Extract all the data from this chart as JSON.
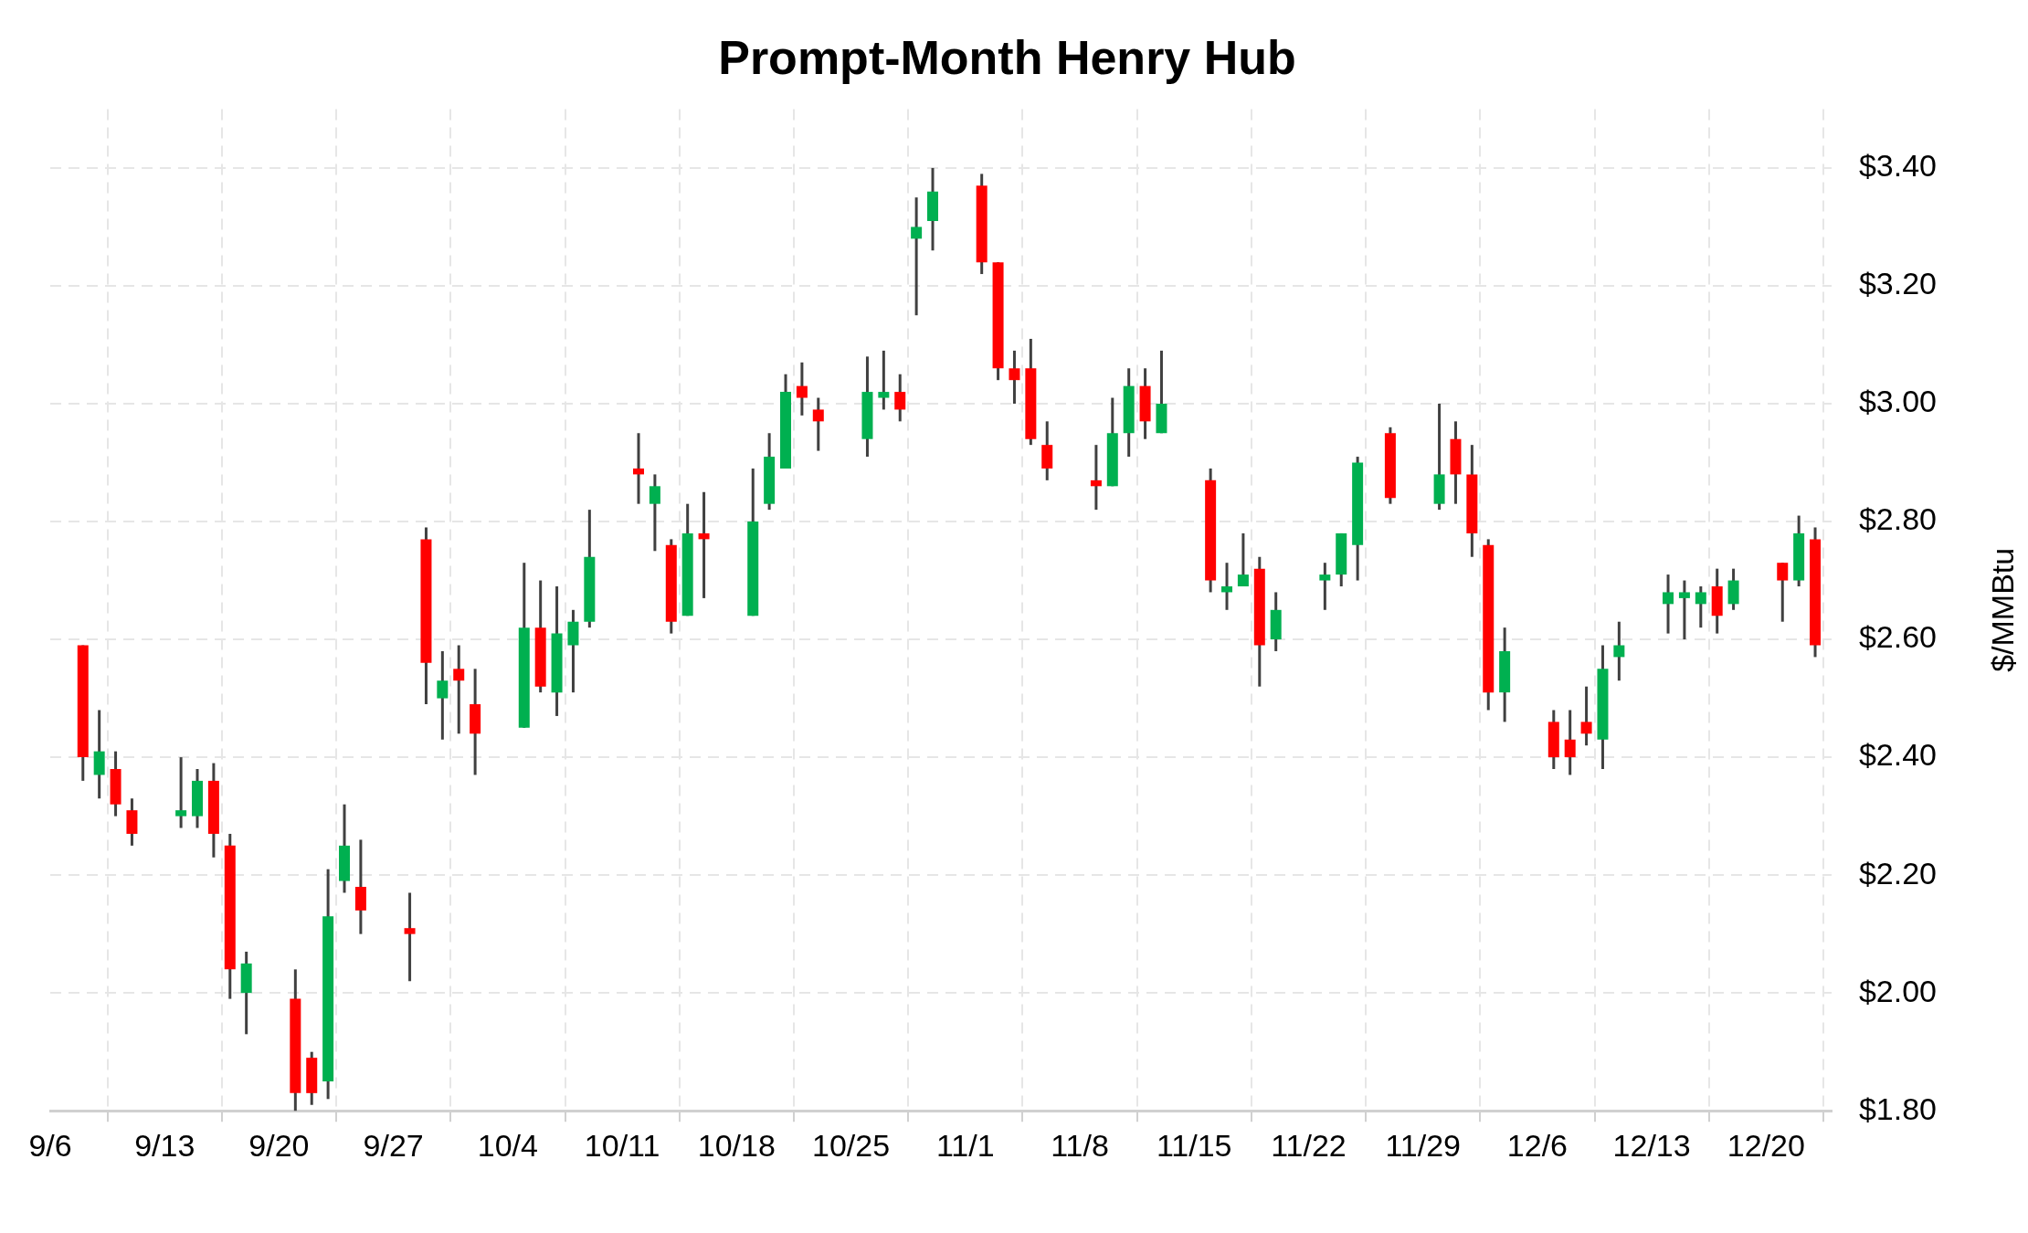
{
  "chart_data": {
    "type": "candlestick",
    "title": "Prompt-Month Henry Hub",
    "ylabel": "$/MMBtu",
    "x": [
      "--09-08",
      "--09-09",
      "--09-10",
      "--09-11",
      "--09-14",
      "--09-15",
      "--09-16",
      "--09-17",
      "--09-18",
      "--09-21",
      "--09-22",
      "--09-23",
      "--09-24",
      "--09-25",
      "--09-28",
      "--09-29",
      "--09-30",
      "--10-01",
      "--10-02",
      "--10-05",
      "--10-06",
      "--10-07",
      "--10-08",
      "--10-09",
      "--10-12",
      "--10-13",
      "--10-14",
      "--10-15",
      "--10-16",
      "--10-19",
      "--10-20",
      "--10-21",
      "--10-22",
      "--10-23",
      "--10-26",
      "--10-27",
      "--10-28",
      "--10-29",
      "--10-30",
      "--11-02",
      "--11-03",
      "--11-04",
      "--11-05",
      "--11-06",
      "--11-09",
      "--11-10",
      "--11-11",
      "--11-12",
      "--11-13",
      "--11-16",
      "--11-17",
      "--11-18",
      "--11-19",
      "--11-20",
      "--11-23",
      "--11-24",
      "--11-25",
      "--11-27",
      "--11-30",
      "--12-01",
      "--12-02",
      "--12-03",
      "--12-04",
      "--12-07",
      "--12-08",
      "--12-09",
      "--12-10",
      "--12-11",
      "--12-14",
      "--12-15",
      "--12-16",
      "--12-17",
      "--12-18",
      "--12-21",
      "--12-22",
      "--12-23"
    ],
    "ohlc": [
      [
        2.59,
        2.59,
        2.36,
        2.4
      ],
      [
        2.37,
        2.48,
        2.33,
        2.41
      ],
      [
        2.38,
        2.41,
        2.3,
        2.32
      ],
      [
        2.31,
        2.33,
        2.25,
        2.27
      ],
      [
        2.3,
        2.4,
        2.28,
        2.31
      ],
      [
        2.3,
        2.38,
        2.28,
        2.36
      ],
      [
        2.36,
        2.39,
        2.23,
        2.27
      ],
      [
        2.25,
        2.27,
        1.99,
        2.04
      ],
      [
        2.0,
        2.07,
        1.93,
        2.05
      ],
      [
        1.99,
        2.04,
        1.8,
        1.83
      ],
      [
        1.89,
        1.9,
        1.81,
        1.83
      ],
      [
        1.85,
        2.21,
        1.82,
        2.13
      ],
      [
        2.19,
        2.32,
        2.17,
        2.25
      ],
      [
        2.18,
        2.26,
        2.1,
        2.14
      ],
      [
        2.11,
        2.17,
        2.02,
        2.1
      ],
      [
        2.77,
        2.79,
        2.49,
        2.56
      ],
      [
        2.5,
        2.58,
        2.43,
        2.53
      ],
      [
        2.55,
        2.59,
        2.44,
        2.53
      ],
      [
        2.49,
        2.55,
        2.37,
        2.44
      ],
      [
        2.45,
        2.73,
        2.45,
        2.62
      ],
      [
        2.62,
        2.7,
        2.51,
        2.52
      ],
      [
        2.51,
        2.69,
        2.47,
        2.61
      ],
      [
        2.59,
        2.65,
        2.51,
        2.63
      ],
      [
        2.63,
        2.82,
        2.62,
        2.74
      ],
      [
        2.89,
        2.95,
        2.83,
        2.88
      ],
      [
        2.83,
        2.88,
        2.75,
        2.86
      ],
      [
        2.76,
        2.77,
        2.61,
        2.63
      ],
      [
        2.64,
        2.83,
        2.64,
        2.78
      ],
      [
        2.78,
        2.85,
        2.67,
        2.77
      ],
      [
        2.64,
        2.89,
        2.64,
        2.8
      ],
      [
        2.83,
        2.95,
        2.82,
        2.91
      ],
      [
        2.89,
        3.05,
        2.89,
        3.02
      ],
      [
        3.03,
        3.07,
        2.98,
        3.01
      ],
      [
        2.99,
        3.01,
        2.92,
        2.97
      ],
      [
        2.94,
        3.08,
        2.91,
        3.02
      ],
      [
        3.01,
        3.09,
        2.99,
        3.02
      ],
      [
        3.02,
        3.05,
        2.97,
        2.99
      ],
      [
        3.28,
        3.35,
        3.15,
        3.3
      ],
      [
        3.31,
        3.4,
        3.26,
        3.36
      ],
      [
        3.37,
        3.39,
        3.22,
        3.24
      ],
      [
        3.24,
        3.24,
        3.04,
        3.06
      ],
      [
        3.06,
        3.09,
        3.0,
        3.04
      ],
      [
        3.06,
        3.11,
        2.93,
        2.94
      ],
      [
        2.93,
        2.97,
        2.87,
        2.89
      ],
      [
        2.87,
        2.93,
        2.82,
        2.86
      ],
      [
        2.86,
        3.01,
        2.86,
        2.95
      ],
      [
        2.95,
        3.06,
        2.91,
        3.03
      ],
      [
        3.03,
        3.06,
        2.94,
        2.97
      ],
      [
        2.95,
        3.09,
        2.95,
        3.0
      ],
      [
        2.87,
        2.89,
        2.68,
        2.7
      ],
      [
        2.68,
        2.73,
        2.65,
        2.69
      ],
      [
        2.69,
        2.78,
        2.69,
        2.71
      ],
      [
        2.72,
        2.74,
        2.52,
        2.59
      ],
      [
        2.6,
        2.68,
        2.58,
        2.65
      ],
      [
        2.7,
        2.73,
        2.65,
        2.71
      ],
      [
        2.71,
        2.78,
        2.69,
        2.78
      ],
      [
        2.76,
        2.91,
        2.7,
        2.9
      ],
      [
        2.95,
        2.96,
        2.83,
        2.84
      ],
      [
        2.83,
        3.0,
        2.82,
        2.88
      ],
      [
        2.94,
        2.97,
        2.83,
        2.88
      ],
      [
        2.88,
        2.93,
        2.74,
        2.78
      ],
      [
        2.76,
        2.77,
        2.48,
        2.51
      ],
      [
        2.51,
        2.62,
        2.46,
        2.58
      ],
      [
        2.46,
        2.48,
        2.38,
        2.4
      ],
      [
        2.43,
        2.48,
        2.37,
        2.4
      ],
      [
        2.46,
        2.52,
        2.42,
        2.44
      ],
      [
        2.43,
        2.59,
        2.38,
        2.55
      ],
      [
        2.57,
        2.63,
        2.53,
        2.59
      ],
      [
        2.66,
        2.71,
        2.61,
        2.68
      ],
      [
        2.67,
        2.7,
        2.6,
        2.68
      ],
      [
        2.66,
        2.69,
        2.62,
        2.68
      ],
      [
        2.69,
        2.72,
        2.61,
        2.64
      ],
      [
        2.66,
        2.72,
        2.65,
        2.7
      ],
      [
        2.73,
        2.73,
        2.63,
        2.7
      ],
      [
        2.7,
        2.81,
        2.69,
        2.78
      ],
      [
        2.77,
        2.79,
        2.57,
        2.59
      ]
    ],
    "colors": [
      "#ff0000",
      "#00b050",
      "#ff0000",
      "#ff0000",
      "#00b050",
      "#00b050",
      "#ff0000",
      "#ff0000",
      "#00b050",
      "#ff0000",
      "#ff0000",
      "#00b050",
      "#00b050",
      "#ff0000",
      "#ff0000",
      "#ff0000",
      "#00b050",
      "#ff0000",
      "#ff0000",
      "#00b050",
      "#ff0000",
      "#00b050",
      "#00b050",
      "#00b050",
      "#ff0000",
      "#00b050",
      "#ff0000",
      "#00b050",
      "#ff0000",
      "#00b050",
      "#00b050",
      "#00b050",
      "#ff0000",
      "#ff0000",
      "#00b050",
      "#00b050",
      "#ff0000",
      "#00b050",
      "#00b050",
      "#ff0000",
      "#ff0000",
      "#ff0000",
      "#ff0000",
      "#ff0000",
      "#ff0000",
      "#00b050",
      "#00b050",
      "#ff0000",
      "#00b050",
      "#ff0000",
      "#00b050",
      "#00b050",
      "#ff0000",
      "#00b050",
      "#00b050",
      "#00b050",
      "#00b050",
      "#ff0000",
      "#00b050",
      "#ff0000",
      "#ff0000",
      "#ff0000",
      "#00b050",
      "#ff0000",
      "#ff0000",
      "#ff0000",
      "#00b050",
      "#00b050",
      "#00b050",
      "#00b050",
      "#00b050",
      "#ff0000",
      "#00b050",
      "#ff0000",
      "#00b050",
      "#ff0000"
    ],
    "xlim": [
      "--09-06",
      "--12-24"
    ],
    "xticks": [
      {
        "value": "--09-06",
        "label": "9/6"
      },
      {
        "value": "--09-13",
        "label": "9/13"
      },
      {
        "value": "--09-20",
        "label": "9/20"
      },
      {
        "value": "--09-27",
        "label": "9/27"
      },
      {
        "value": "--10-04",
        "label": "10/4"
      },
      {
        "value": "--10-11",
        "label": "10/11"
      },
      {
        "value": "--10-18",
        "label": "10/18"
      },
      {
        "value": "--10-25",
        "label": "10/25"
      },
      {
        "value": "--11-01",
        "label": "11/1"
      },
      {
        "value": "--11-08",
        "label": "11/8"
      },
      {
        "value": "--11-15",
        "label": "11/15"
      },
      {
        "value": "--11-22",
        "label": "11/22"
      },
      {
        "value": "--11-29",
        "label": "11/29"
      },
      {
        "value": "--12-06",
        "label": "12/6"
      },
      {
        "value": "--12-13",
        "label": "12/13"
      },
      {
        "value": "--12-20",
        "label": "12/20"
      }
    ],
    "ylim": [
      1.8,
      3.5
    ],
    "yticks": [
      {
        "value": 1.8,
        "label": "$1.80"
      },
      {
        "value": 2.0,
        "label": "$2.00"
      },
      {
        "value": 2.2,
        "label": "$2.20"
      },
      {
        "value": 2.4,
        "label": "$2.40"
      },
      {
        "value": 2.6,
        "label": "$2.60"
      },
      {
        "value": 2.8,
        "label": "$2.80"
      },
      {
        "value": 3.0,
        "label": "$3.00"
      },
      {
        "value": 3.2,
        "label": "$3.20"
      },
      {
        "value": 3.4,
        "label": "$3.40"
      }
    ],
    "grid": true,
    "legend": false
  }
}
